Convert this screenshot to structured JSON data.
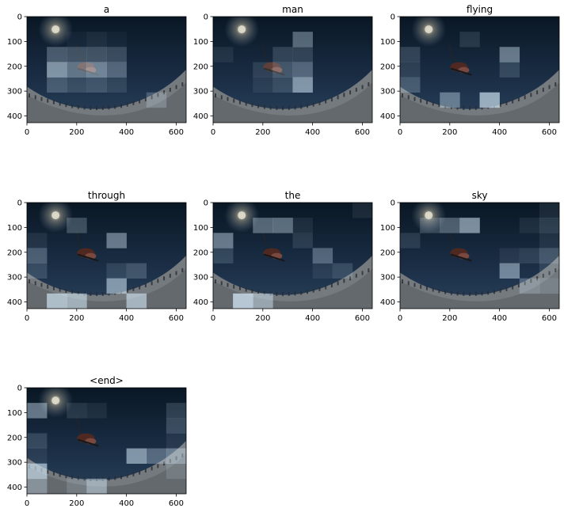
{
  "chart_data": {
    "type": "heatmap",
    "description_words": [
      "a",
      "man",
      "flying",
      "through",
      "the",
      "sky",
      "<end>"
    ],
    "x_ticks": [
      0,
      200,
      400,
      600
    ],
    "y_ticks": [
      0,
      100,
      200,
      300,
      400
    ],
    "xlim": [
      0,
      640
    ],
    "ylim": [
      0,
      427
    ],
    "grid_cols": 8,
    "grid_rows": 7,
    "grid": false,
    "panels": [
      {
        "title": "a",
        "attention": [
          [
            0,
            0,
            0,
            0,
            0,
            0,
            0,
            0
          ],
          [
            0,
            0,
            0.05,
            0.1,
            0.05,
            0,
            0,
            0
          ],
          [
            0,
            0.35,
            0.3,
            0.3,
            0.25,
            0,
            0,
            0
          ],
          [
            0,
            0.7,
            0.5,
            0.6,
            0.4,
            0,
            0,
            0
          ],
          [
            0,
            0.3,
            0.2,
            0.25,
            0.15,
            0,
            0,
            0
          ],
          [
            0,
            0,
            0,
            0,
            0,
            0,
            0.3,
            0
          ],
          [
            0,
            0,
            0,
            0,
            0,
            0,
            0,
            0
          ]
        ]
      },
      {
        "title": "man",
        "attention": [
          [
            0,
            0,
            0,
            0,
            0,
            0,
            0,
            0
          ],
          [
            0,
            0,
            0,
            0,
            0.45,
            0,
            0,
            0
          ],
          [
            0.1,
            0,
            0,
            0.2,
            0.2,
            0,
            0,
            0
          ],
          [
            0,
            0,
            0.15,
            0.3,
            0.4,
            0,
            0,
            0
          ],
          [
            0,
            0,
            0.1,
            0.2,
            0.7,
            0,
            0,
            0
          ],
          [
            0,
            0,
            0,
            0,
            0,
            0,
            0,
            0
          ],
          [
            0,
            0,
            0,
            0,
            0,
            0,
            0,
            0
          ]
        ]
      },
      {
        "title": "flying",
        "attention": [
          [
            0,
            0,
            0,
            0,
            0,
            0,
            0,
            0
          ],
          [
            0,
            0,
            0,
            0.15,
            0,
            0,
            0,
            0
          ],
          [
            0.2,
            0,
            0,
            0,
            0,
            0.55,
            0,
            0
          ],
          [
            0.15,
            0,
            0,
            0,
            0,
            0.2,
            0,
            0
          ],
          [
            0.3,
            0,
            0,
            0,
            0,
            0,
            0,
            0
          ],
          [
            0,
            0,
            0.5,
            0,
            0.85,
            0,
            0,
            0
          ],
          [
            0,
            0,
            0,
            0,
            0,
            0,
            0,
            0
          ]
        ]
      },
      {
        "title": "through",
        "attention": [
          [
            0,
            0,
            0,
            0,
            0,
            0,
            0,
            0
          ],
          [
            0,
            0,
            0.3,
            0,
            0,
            0,
            0,
            0
          ],
          [
            0.1,
            0,
            0,
            0,
            0.55,
            0,
            0,
            0
          ],
          [
            0.35,
            0,
            0,
            0,
            0,
            0,
            0,
            0
          ],
          [
            0.2,
            0,
            0,
            0,
            0.15,
            0.25,
            0,
            0
          ],
          [
            0,
            0,
            0,
            0,
            0.7,
            0,
            0,
            0
          ],
          [
            0,
            0.85,
            0.7,
            0,
            0,
            0.75,
            0,
            0
          ]
        ]
      },
      {
        "title": "the",
        "attention": [
          [
            0,
            0,
            0,
            0,
            0,
            0,
            0,
            0.1
          ],
          [
            0,
            0,
            0.45,
            0.5,
            0.1,
            0,
            0,
            0
          ],
          [
            0.55,
            0,
            0,
            0,
            0.15,
            0,
            0,
            0
          ],
          [
            0.2,
            0,
            0,
            0,
            0,
            0.4,
            0,
            0
          ],
          [
            0,
            0,
            0,
            0,
            0,
            0.1,
            0.2,
            0
          ],
          [
            0,
            0,
            0,
            0,
            0,
            0,
            0,
            0
          ],
          [
            0,
            0.95,
            0.6,
            0,
            0,
            0,
            0,
            0
          ]
        ]
      },
      {
        "title": "sky",
        "attention": [
          [
            0,
            0,
            0,
            0,
            0,
            0,
            0,
            0.1
          ],
          [
            0,
            0.25,
            0.4,
            0.7,
            0,
            0,
            0.1,
            0.2
          ],
          [
            0.15,
            0,
            0,
            0,
            0,
            0,
            0,
            0.1
          ],
          [
            0,
            0,
            0,
            0,
            0,
            0.1,
            0.15,
            0.3
          ],
          [
            0,
            0,
            0,
            0,
            0,
            0.6,
            0,
            0.15
          ],
          [
            0,
            0,
            0,
            0,
            0,
            0,
            0.35,
            0.25
          ],
          [
            0,
            0,
            0,
            0,
            0,
            0,
            0,
            0
          ]
        ]
      },
      {
        "title": "<end>",
        "attention": [
          [
            0,
            0,
            0,
            0,
            0,
            0,
            0,
            0
          ],
          [
            0.55,
            0,
            0.15,
            0.1,
            0,
            0,
            0,
            0.2
          ],
          [
            0,
            0,
            0,
            0,
            0,
            0,
            0,
            0.25
          ],
          [
            0.2,
            0,
            0,
            0,
            0,
            0,
            0,
            0.1
          ],
          [
            0.1,
            0,
            0,
            0,
            0,
            0.7,
            0.4,
            0.55
          ],
          [
            0.8,
            0,
            0,
            0,
            0,
            0,
            0,
            0.2
          ],
          [
            0.4,
            0,
            0.2,
            0.6,
            0,
            0,
            0,
            0
          ]
        ]
      }
    ]
  },
  "colors": {
    "sky_top": "#0b1b2a",
    "sky_bottom": "#243b55",
    "snow": "#8f9398",
    "attention_tint": "#d4eaf8"
  }
}
